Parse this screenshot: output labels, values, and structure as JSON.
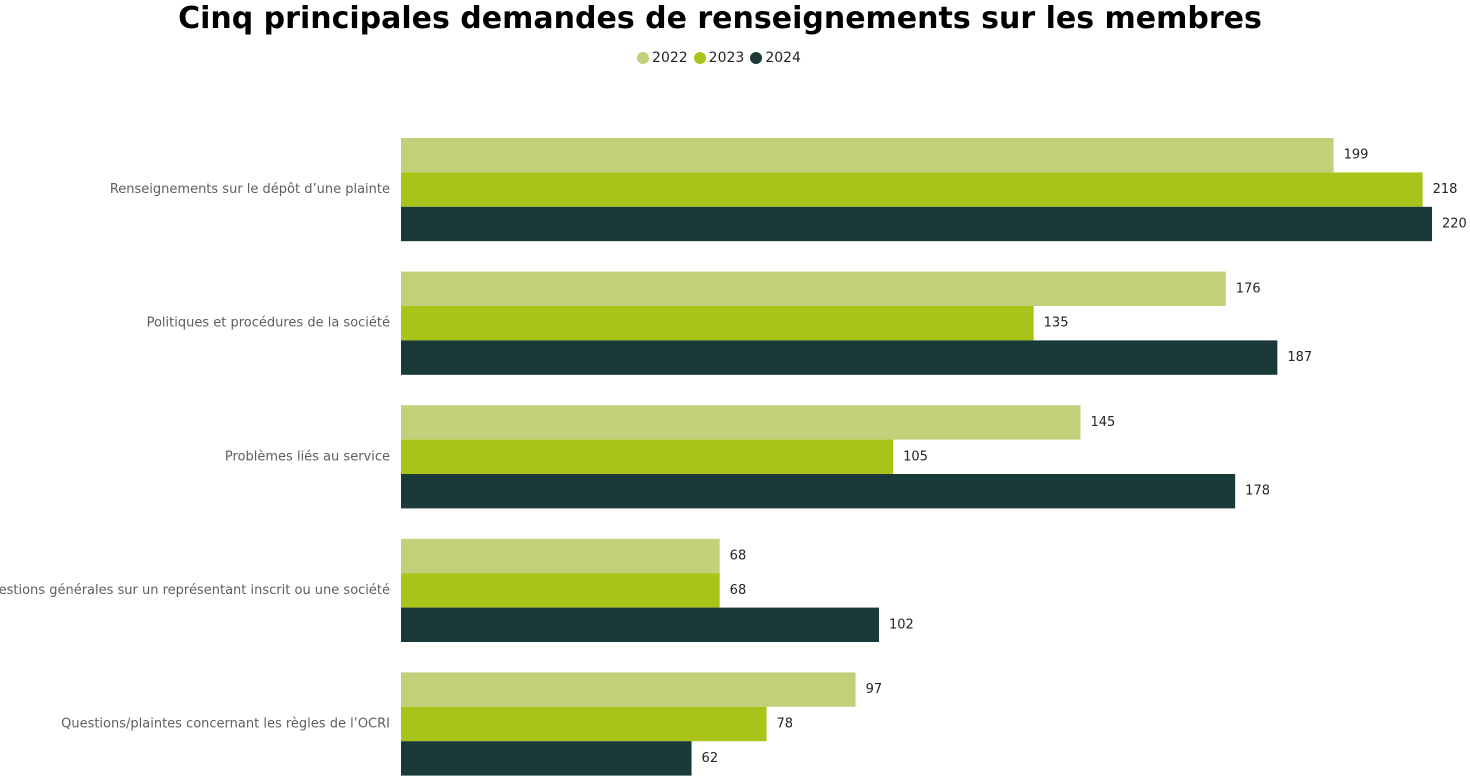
{
  "chart_data": {
    "type": "bar",
    "orientation": "horizontal",
    "title": "Cinq principales demandes de renseignements sur les membres",
    "categories": [
      "Renseignements sur le dépôt d’une plainte",
      "Politiques et procédures de la société",
      "Problèmes liés au service",
      "Questions générales sur un représentant inscrit ou une société",
      "Questions/plaintes concernant les règles de l’OCRI"
    ],
    "series": [
      {
        "name": "2022",
        "color": "#c4cf79",
        "values": [
          199,
          176,
          145,
          68,
          97
        ]
      },
      {
        "name": "2023",
        "color": "#aac318",
        "values": [
          218,
          135,
          105,
          68,
          78
        ]
      },
      {
        "name": "2024",
        "color": "#1a3a3a",
        "values": [
          220,
          187,
          178,
          102,
          62
        ]
      }
    ],
    "xlim": [
      0,
      220
    ],
    "legend_position": "top-center",
    "grid": false,
    "data_labels": true
  }
}
